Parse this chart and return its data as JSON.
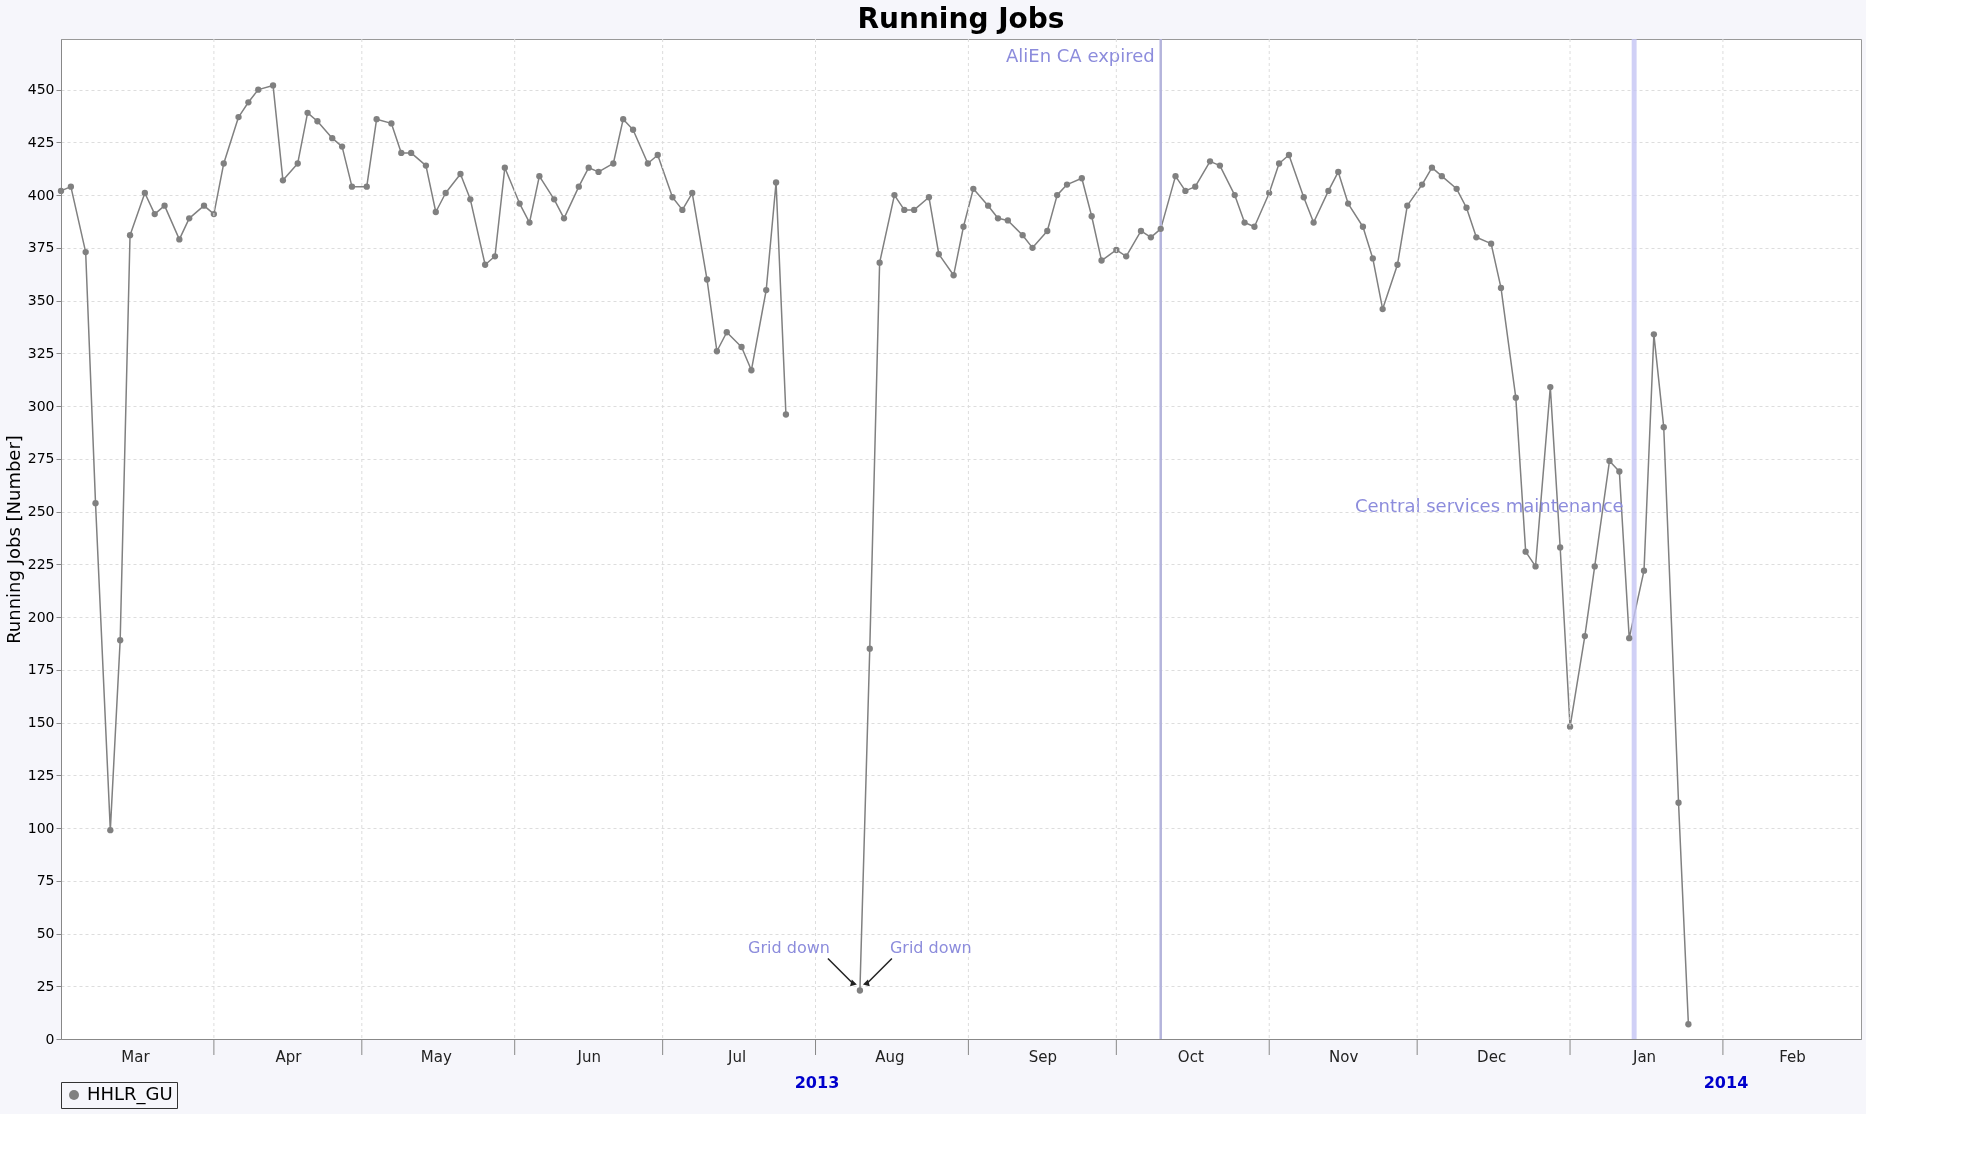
{
  "chart_data": {
    "type": "line",
    "title": "Running Jobs",
    "ylabel": "Running Jobs [Number]",
    "xlim": [
      "2013-03-01",
      "2014-03-01"
    ],
    "ylim": [
      0,
      474
    ],
    "yticks": [
      0,
      25,
      50,
      75,
      100,
      125,
      150,
      175,
      200,
      225,
      250,
      275,
      300,
      325,
      350,
      375,
      400,
      425,
      450
    ],
    "xticks": [
      {
        "value": "2013-03-16",
        "label": "Mar"
      },
      {
        "value": "2013-04-01",
        "label": null
      },
      {
        "value": "2013-04-16",
        "label": "Apr"
      },
      {
        "value": "2013-05-01",
        "label": null
      },
      {
        "value": "2013-05-16",
        "label": "May"
      },
      {
        "value": "2013-06-01",
        "label": null
      },
      {
        "value": "2013-06-16",
        "label": "Jun"
      },
      {
        "value": "2013-07-01",
        "label": null
      },
      {
        "value": "2013-07-16",
        "label": "Jul"
      },
      {
        "value": "2013-08-01",
        "label": null
      },
      {
        "value": "2013-08-16",
        "label": "Aug"
      },
      {
        "value": "2013-09-01",
        "label": null
      },
      {
        "value": "2013-09-16",
        "label": "Sep"
      },
      {
        "value": "2013-10-01",
        "label": null
      },
      {
        "value": "2013-10-16",
        "label": "Oct"
      },
      {
        "value": "2013-11-01",
        "label": null
      },
      {
        "value": "2013-11-16",
        "label": "Nov"
      },
      {
        "value": "2013-12-01",
        "label": null
      },
      {
        "value": "2013-12-16",
        "label": "Dec"
      },
      {
        "value": "2014-01-01",
        "label": null
      },
      {
        "value": "2014-01-16",
        "label": "Jan"
      },
      {
        "value": "2014-02-01",
        "label": null
      },
      {
        "value": "2014-02-15",
        "label": "Feb"
      }
    ],
    "grid": true,
    "legend": "bottom",
    "marker": "circle",
    "line_style": "solid",
    "series": [
      {
        "name": "HHLR_GU",
        "color": "#808080",
        "x": [
          "2013-03-01",
          "2013-03-03",
          "2013-03-06",
          "2013-03-08",
          "2013-03-11",
          "2013-03-13",
          "2013-03-15",
          "2013-03-18",
          "2013-03-20",
          "2013-03-22",
          "2013-03-25",
          "2013-03-27",
          "2013-03-30",
          "2013-04-01",
          "2013-04-03",
          "2013-04-06",
          "2013-04-08",
          "2013-04-10",
          "2013-04-13",
          "2013-04-15",
          "2013-04-18",
          "2013-04-20",
          "2013-04-22",
          "2013-04-25",
          "2013-04-27",
          "2013-04-29",
          "2013-05-02",
          "2013-05-04",
          "2013-05-07",
          "2013-05-09",
          "2013-05-11",
          "2013-05-14",
          "2013-05-16",
          "2013-05-18",
          "2013-05-21",
          "2013-05-23",
          "2013-05-26",
          "2013-05-28",
          "2013-05-30",
          "2013-06-02",
          "2013-06-04",
          "2013-06-06",
          "2013-06-09",
          "2013-06-11",
          "2013-06-14",
          "2013-06-16",
          "2013-06-18",
          "2013-06-21",
          "2013-06-23",
          "2013-06-25",
          "2013-06-28",
          "2013-06-30",
          "2013-07-03",
          "2013-07-05",
          "2013-07-07",
          "2013-07-10",
          "2013-07-12",
          "2013-07-14",
          "2013-07-17",
          "2013-07-19",
          "2013-07-22",
          "2013-07-24",
          "2013-07-26",
          "2013-08-02",
          "2013-08-10",
          "2013-08-12",
          "2013-08-14",
          "2013-08-17",
          "2013-08-19",
          "2013-08-21",
          "2013-08-24",
          "2013-08-26",
          "2013-08-29",
          "2013-08-31",
          "2013-09-02",
          "2013-09-05",
          "2013-09-07",
          "2013-09-09",
          "2013-09-12",
          "2013-09-14",
          "2013-09-17",
          "2013-09-19",
          "2013-09-21",
          "2013-09-24",
          "2013-09-26",
          "2013-09-28",
          "2013-10-01",
          "2013-10-03",
          "2013-10-06",
          "2013-10-08",
          "2013-10-10",
          "2013-10-13",
          "2013-10-15",
          "2013-10-17",
          "2013-10-20",
          "2013-10-22",
          "2013-10-25",
          "2013-10-27",
          "2013-10-29",
          "2013-11-01",
          "2013-11-03",
          "2013-11-05",
          "2013-11-08",
          "2013-11-10",
          "2013-11-13",
          "2013-11-15",
          "2013-11-17",
          "2013-11-20",
          "2013-11-22",
          "2013-11-24",
          "2013-11-27",
          "2013-11-29",
          "2013-12-02",
          "2013-12-04",
          "2013-12-06",
          "2013-12-09",
          "2013-12-11",
          "2013-12-13",
          "2013-12-16",
          "2013-12-18",
          "2013-12-21",
          "2013-12-23",
          "2013-12-25",
          "2013-12-28",
          "2013-12-30",
          "2014-01-01",
          "2014-01-04",
          "2014-01-06",
          "2014-01-09",
          "2014-01-11",
          "2014-01-13",
          "2014-01-16",
          "2014-01-18",
          "2014-01-20",
          "2014-01-23",
          "2014-01-25"
        ],
        "values": [
          402,
          404,
          373,
          254,
          99,
          189,
          381,
          401,
          391,
          395,
          379,
          389,
          395,
          391,
          415,
          437,
          444,
          450,
          452,
          407,
          415,
          439,
          435,
          427,
          423,
          404,
          404,
          436,
          434,
          420,
          420,
          414,
          392,
          401,
          410,
          398,
          367,
          371,
          413,
          396,
          387,
          409,
          398,
          389,
          404,
          413,
          411,
          415,
          436,
          431,
          415,
          419,
          399,
          393,
          401,
          360,
          326,
          335,
          328,
          317,
          355,
          406,
          296,
          null,
          23,
          185,
          368,
          400,
          393,
          393,
          399,
          372,
          362,
          385,
          403,
          395,
          389,
          388,
          381,
          375,
          383,
          400,
          405,
          408,
          390,
          369,
          374,
          371,
          383,
          380,
          384,
          409,
          402,
          404,
          416,
          414,
          400,
          387,
          385,
          401,
          415,
          419,
          399,
          387,
          402,
          411,
          396,
          385,
          370,
          346,
          367,
          395,
          405,
          413,
          409,
          403,
          394,
          380,
          377,
          356,
          304,
          231,
          224,
          309,
          233,
          148,
          191,
          224,
          274,
          269,
          190,
          222,
          334,
          290,
          112,
          7
        ]
      }
    ],
    "ref_lines": [
      {
        "axis": "x",
        "value": "2013-10-10",
        "label": "AliEn CA expired",
        "color": "#b4b4dc"
      }
    ],
    "bands": [
      {
        "axis": "x",
        "from": "2014-01-13T12:00",
        "to": "2014-01-14T12:00",
        "label": "Central services maintenance",
        "color": "#c4c4f4"
      }
    ],
    "annotations": [
      {
        "text": "Grid down",
        "x": "2013-08-10",
        "y": 23
      },
      {
        "text": "Grid down",
        "x": "2013-08-10",
        "y": 23
      },
      "2013",
      "2014"
    ]
  }
}
